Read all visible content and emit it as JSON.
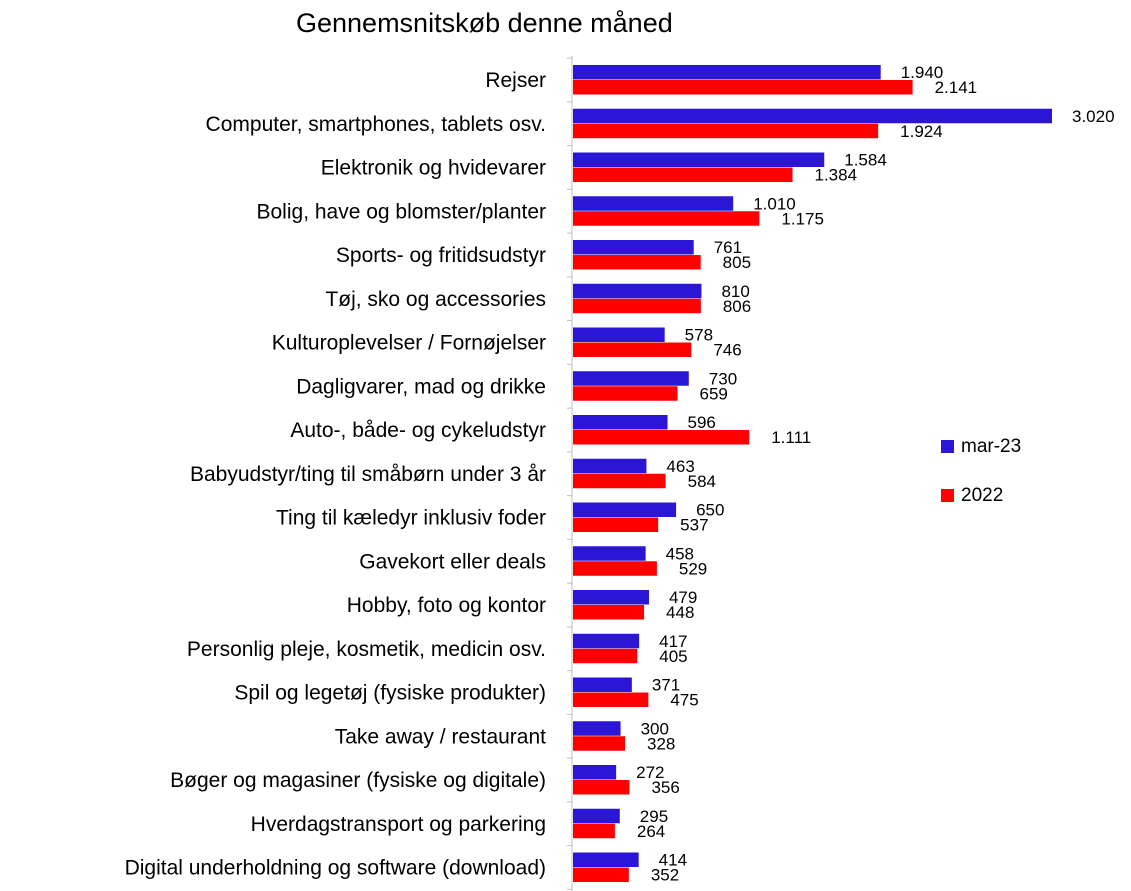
{
  "chart_data": {
    "type": "bar",
    "orientation": "horizontal",
    "title": "Gennemsnitskøb denne måned",
    "categories": [
      "Rejser",
      "Computer, smartphones, tablets osv.",
      "Elektronik og hvidevarer",
      "Bolig, have og blomster/planter",
      "Sports- og fritidsudstyr",
      "Tøj, sko og accessories",
      "Kulturoplevelser / Fornøjelser",
      "Dagligvarer, mad og drikke",
      "Auto-, både- og cykeludstyr",
      "Babyudstyr/ting til småbørn under 3 år",
      "Ting til kæledyr inklusiv foder",
      "Gavekort eller deals",
      "Hobby, foto og kontor",
      "Personlig pleje, kosmetik, medicin osv.",
      "Spil og legetøj (fysiske produkter)",
      "Take away / restaurant",
      "Bøger og magasiner (fysiske og digitale)",
      "Hverdagstransport og parkering",
      "Digital underholdning og software (download)"
    ],
    "series": [
      {
        "name": "mar-23",
        "color": "#2b16d6",
        "values": [
          1940,
          3020,
          1584,
          1010,
          761,
          810,
          578,
          730,
          596,
          463,
          650,
          458,
          479,
          417,
          371,
          300,
          272,
          295,
          414
        ],
        "labels": [
          "1.940",
          "3.020",
          "1.584",
          "1.010",
          "761",
          "810",
          "578",
          "730",
          "596",
          "463",
          "650",
          "458",
          "479",
          "417",
          "371",
          "300",
          "272",
          "295",
          "414"
        ]
      },
      {
        "name": "2022",
        "color": "#ff0000",
        "values": [
          2141,
          1924,
          1384,
          1175,
          805,
          806,
          746,
          659,
          1111,
          584,
          537,
          529,
          448,
          405,
          475,
          328,
          356,
          264,
          352
        ],
        "labels": [
          "2.141",
          "1.924",
          "1.384",
          "1.175",
          "805",
          "806",
          "746",
          "659",
          "1.111",
          "584",
          "537",
          "529",
          "448",
          "405",
          "475",
          "328",
          "356",
          "264",
          "352"
        ]
      }
    ],
    "xlim": [
      0,
      3020
    ],
    "grid": false,
    "legend_position": "right"
  }
}
